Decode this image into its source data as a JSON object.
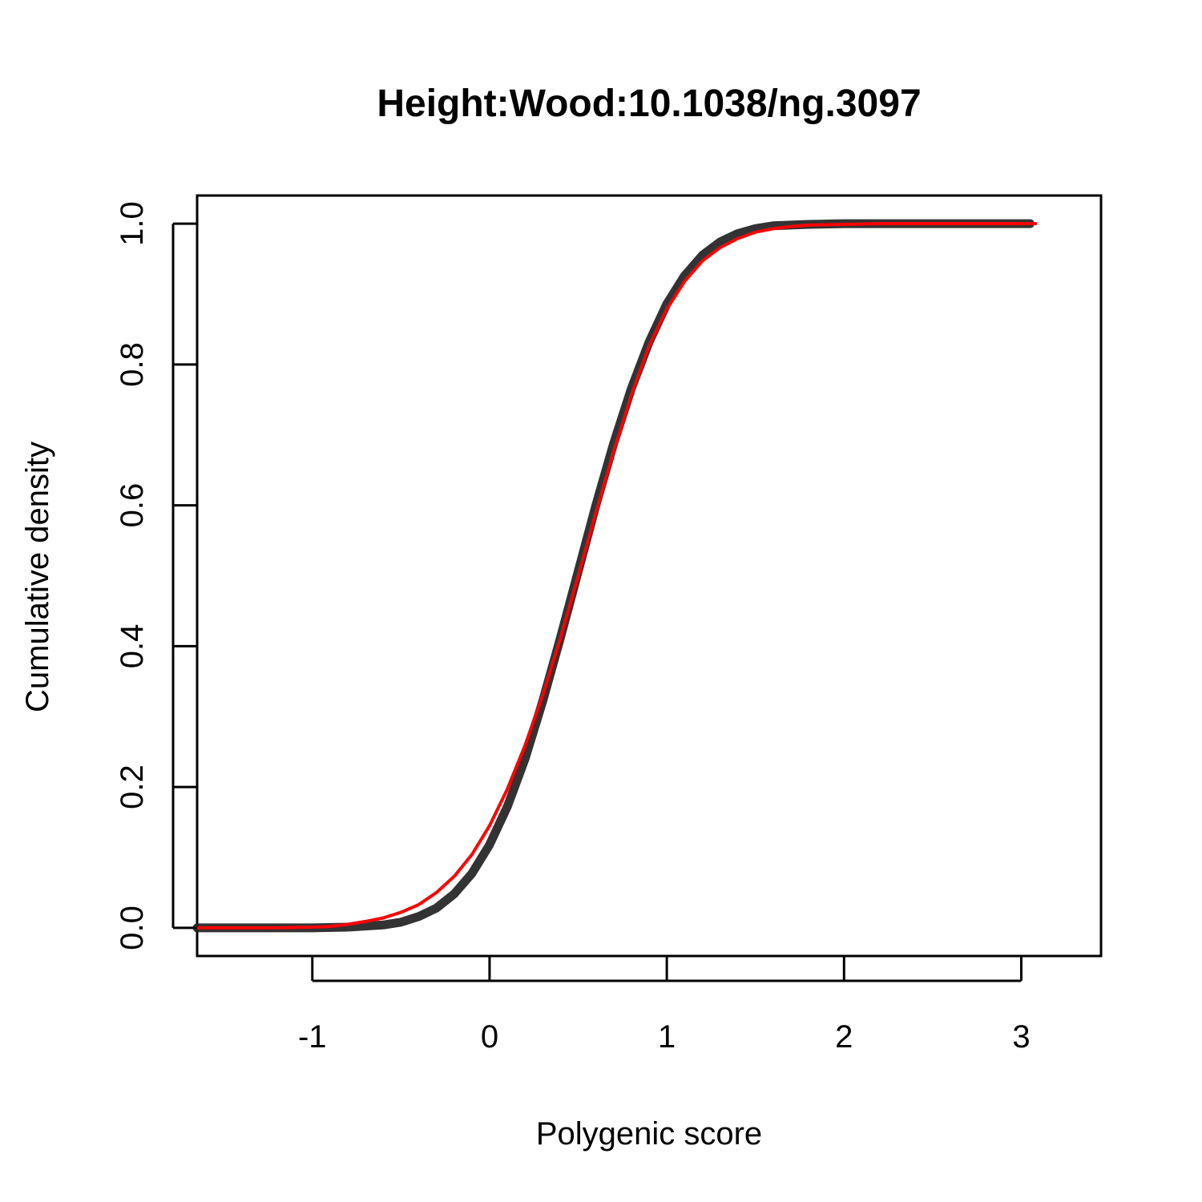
{
  "chart_data": {
    "type": "line",
    "title": "Height:Wood:10.1038/ng.3097",
    "xlabel": "Polygenic score",
    "ylabel": "Cumulative density",
    "xlim": [
      -1.65,
      3.45
    ],
    "ylim": [
      -0.04,
      1.04
    ],
    "x_ticks": [
      -1,
      0,
      1,
      2,
      3
    ],
    "x_tick_labels": [
      "-1",
      "0",
      "1",
      "2",
      "3"
    ],
    "y_ticks": [
      0.0,
      0.2,
      0.4,
      0.6,
      0.8,
      1.0
    ],
    "y_tick_labels": [
      "0.0",
      "0.2",
      "0.4",
      "0.6",
      "0.8",
      "1.0"
    ],
    "grid": false,
    "legend": "none",
    "series": [
      {
        "color": "#222222",
        "x": [
          -1.65,
          -1.4,
          -1.2,
          -1.0,
          -0.8,
          -0.6,
          -0.5,
          -0.4,
          -0.3,
          -0.2,
          -0.1,
          0.0,
          0.1,
          0.2,
          0.3,
          0.4,
          0.5,
          0.6,
          0.7,
          0.8,
          0.9,
          1.0,
          1.1,
          1.2,
          1.3,
          1.4,
          1.5,
          1.6,
          1.8,
          2.0,
          2.2,
          2.5,
          3.05
        ],
        "values": [
          0.0,
          0.0,
          0.0,
          0.0,
          0.001,
          0.004,
          0.008,
          0.016,
          0.028,
          0.048,
          0.077,
          0.118,
          0.172,
          0.24,
          0.322,
          0.412,
          0.506,
          0.6,
          0.688,
          0.766,
          0.832,
          0.886,
          0.926,
          0.955,
          0.974,
          0.986,
          0.993,
          0.997,
          0.999,
          1.0,
          1.0,
          1.0,
          1.0
        ]
      },
      {
        "color": "#ff0000",
        "x": [
          -1.65,
          -1.4,
          -1.2,
          -1.0,
          -0.9,
          -0.8,
          -0.7,
          -0.6,
          -0.5,
          -0.4,
          -0.3,
          -0.2,
          -0.1,
          0.0,
          0.1,
          0.2,
          0.3,
          0.4,
          0.5,
          0.6,
          0.7,
          0.8,
          0.9,
          1.0,
          1.1,
          1.2,
          1.3,
          1.4,
          1.5,
          1.6,
          1.7,
          1.8,
          2.0,
          2.2,
          2.5,
          3.08
        ],
        "values": [
          0.0,
          0.0,
          0.0,
          0.001,
          0.002,
          0.005,
          0.009,
          0.014,
          0.022,
          0.033,
          0.05,
          0.073,
          0.104,
          0.145,
          0.197,
          0.259,
          0.331,
          0.412,
          0.5,
          0.59,
          0.677,
          0.757,
          0.827,
          0.879,
          0.918,
          0.947,
          0.966,
          0.979,
          0.988,
          0.993,
          0.996,
          0.998,
          0.999,
          1.0,
          1.0,
          1.0
        ]
      }
    ]
  }
}
